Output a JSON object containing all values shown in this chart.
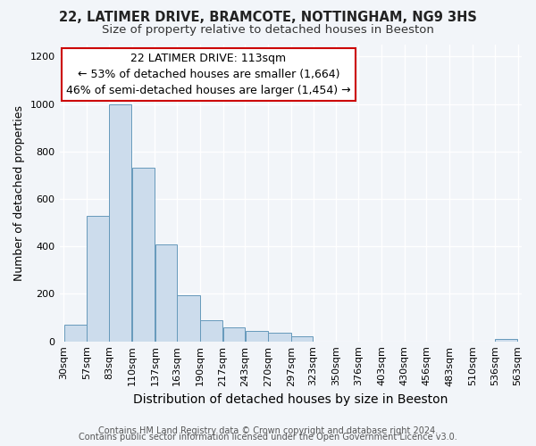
{
  "title1": "22, LATIMER DRIVE, BRAMCOTE, NOTTINGHAM, NG9 3HS",
  "title2": "Size of property relative to detached houses in Beeston",
  "xlabel": "Distribution of detached houses by size in Beeston",
  "ylabel": "Number of detached properties",
  "footer1": "Contains HM Land Registry data © Crown copyright and database right 2024.",
  "footer2": "Contains public sector information licensed under the Open Government Licence v3.0.",
  "annotation_line1": "22 LATIMER DRIVE: 113sqm",
  "annotation_line2": "← 53% of detached houses are smaller (1,664)",
  "annotation_line3": "46% of semi-detached houses are larger (1,454) →",
  "bar_edges": [
    30,
    57,
    83,
    110,
    137,
    163,
    190,
    217,
    243,
    270,
    297,
    323,
    350,
    376,
    403,
    430,
    456,
    483,
    510,
    536,
    563
  ],
  "bar_heights": [
    70,
    530,
    1000,
    730,
    410,
    195,
    90,
    60,
    45,
    35,
    20,
    0,
    0,
    0,
    0,
    0,
    0,
    0,
    0,
    10
  ],
  "bar_color": "#ccdcec",
  "bar_edge_color": "#6699bb",
  "ylim": [
    0,
    1250
  ],
  "yticks": [
    0,
    200,
    400,
    600,
    800,
    1000,
    1200
  ],
  "bg_color": "#f2f5f9",
  "grid_color": "#ffffff",
  "annotation_box_color": "#ffffff",
  "annotation_box_edge_color": "#cc0000",
  "title1_fontsize": 10.5,
  "title2_fontsize": 9.5,
  "xlabel_fontsize": 10,
  "ylabel_fontsize": 9,
  "tick_fontsize": 8,
  "annotation_fontsize": 9,
  "footer_fontsize": 7
}
